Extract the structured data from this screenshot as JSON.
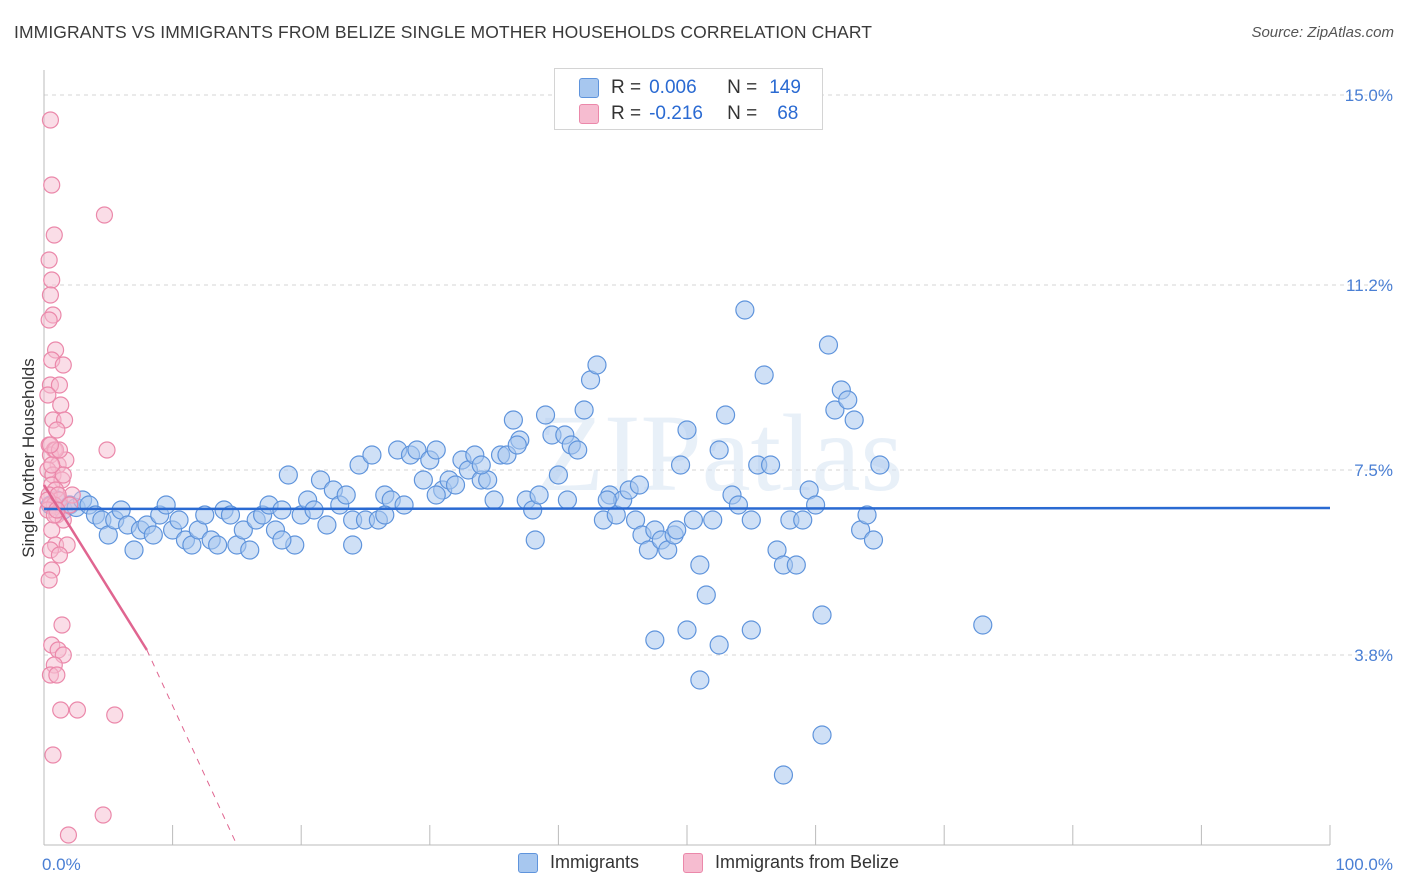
{
  "title": "IMMIGRANTS VS IMMIGRANTS FROM BELIZE SINGLE MOTHER HOUSEHOLDS CORRELATION CHART",
  "source": "Source: ZipAtlas.com",
  "watermark": "ZIPatlas",
  "colors": {
    "blue_fill": "#a7c7ef",
    "blue_stroke": "#5f94dc",
    "blue_line": "#2a6ad2",
    "pink_fill": "#f6bcd0",
    "pink_stroke": "#eb88aa",
    "pink_line": "#e06590",
    "tick_label": "#4a7fd4",
    "grid": "#d6d6d6"
  },
  "legend": [
    {
      "r_label": "R =",
      "r_value": "0.006",
      "n_label": "N =",
      "n_value": "149"
    },
    {
      "r_label": "R =",
      "r_value": "-0.216",
      "n_label": "N =",
      "n_value": "68"
    }
  ],
  "bottom_legend": [
    "Immigrants",
    "Immigrants from Belize"
  ],
  "chart_data": {
    "type": "scatter",
    "title": "IMMIGRANTS VS IMMIGRANTS FROM BELIZE SINGLE MOTHER HOUSEHOLDS CORRELATION CHART",
    "xlabel": "",
    "ylabel": "Single Mother Households",
    "xlim": [
      0,
      100
    ],
    "ylim": [
      0,
      15.5
    ],
    "x_tick_labels": [
      "0.0%",
      "100.0%"
    ],
    "y_ticks": [
      3.8,
      7.5,
      11.2,
      15.0
    ],
    "y_tick_labels": [
      "3.8%",
      "7.5%",
      "11.2%",
      "15.0%"
    ],
    "series": [
      {
        "name": "Immigrants",
        "R": 0.006,
        "N": 149,
        "trend": {
          "x": [
            0,
            100
          ],
          "y": [
            6.72,
            6.74
          ],
          "dashed_after": null
        },
        "points": [
          [
            0.5,
            6.8
          ],
          [
            1.0,
            6.9
          ],
          [
            1.5,
            6.7
          ],
          [
            2.0,
            6.8
          ],
          [
            2.5,
            6.75
          ],
          [
            3.0,
            6.9
          ],
          [
            3.5,
            6.8
          ],
          [
            4.0,
            6.6
          ],
          [
            4.5,
            6.5
          ],
          [
            5.0,
            6.2
          ],
          [
            5.5,
            6.5
          ],
          [
            6.0,
            6.7
          ],
          [
            6.5,
            6.4
          ],
          [
            7.0,
            5.9
          ],
          [
            7.5,
            6.3
          ],
          [
            8.0,
            6.4
          ],
          [
            8.5,
            6.2
          ],
          [
            9.0,
            6.6
          ],
          [
            9.5,
            6.8
          ],
          [
            10.0,
            6.3
          ],
          [
            10.5,
            6.5
          ],
          [
            11.0,
            6.1
          ],
          [
            11.5,
            6.0
          ],
          [
            12.0,
            6.3
          ],
          [
            12.5,
            6.6
          ],
          [
            13.0,
            6.1
          ],
          [
            13.5,
            6.0
          ],
          [
            14.0,
            6.7
          ],
          [
            14.5,
            6.6
          ],
          [
            15.0,
            6.0
          ],
          [
            15.5,
            6.3
          ],
          [
            16.0,
            5.9
          ],
          [
            16.5,
            6.5
          ],
          [
            17.0,
            6.6
          ],
          [
            17.5,
            6.8
          ],
          [
            18.0,
            6.3
          ],
          [
            18.5,
            6.7
          ],
          [
            19.0,
            7.4
          ],
          [
            19.5,
            6.0
          ],
          [
            20.0,
            6.6
          ],
          [
            20.5,
            6.9
          ],
          [
            21.0,
            6.7
          ],
          [
            21.5,
            7.3
          ],
          [
            22.0,
            6.4
          ],
          [
            22.5,
            7.1
          ],
          [
            23.0,
            6.8
          ],
          [
            23.5,
            7.0
          ],
          [
            24.0,
            6.5
          ],
          [
            24.5,
            7.6
          ],
          [
            25.0,
            6.5
          ],
          [
            25.5,
            7.8
          ],
          [
            26.0,
            6.5
          ],
          [
            26.5,
            7.0
          ],
          [
            27.0,
            6.9
          ],
          [
            27.5,
            7.9
          ],
          [
            28.0,
            6.8
          ],
          [
            28.5,
            7.8
          ],
          [
            29.0,
            7.9
          ],
          [
            29.5,
            7.3
          ],
          [
            30.0,
            7.7
          ],
          [
            30.5,
            7.9
          ],
          [
            31.0,
            7.1
          ],
          [
            31.5,
            7.3
          ],
          [
            32.0,
            7.2
          ],
          [
            32.5,
            7.7
          ],
          [
            33.0,
            7.5
          ],
          [
            33.5,
            7.8
          ],
          [
            34.0,
            7.3
          ],
          [
            34.5,
            7.3
          ],
          [
            35.0,
            6.9
          ],
          [
            35.5,
            7.8
          ],
          [
            36.0,
            7.8
          ],
          [
            36.5,
            8.5
          ],
          [
            37.0,
            8.1
          ],
          [
            37.5,
            6.9
          ],
          [
            38.0,
            6.7
          ],
          [
            38.5,
            7.0
          ],
          [
            39.0,
            8.6
          ],
          [
            39.5,
            8.2
          ],
          [
            40.0,
            7.4
          ],
          [
            40.5,
            8.2
          ],
          [
            41.0,
            8.0
          ],
          [
            41.5,
            7.9
          ],
          [
            42.0,
            8.7
          ],
          [
            42.5,
            9.3
          ],
          [
            43.0,
            9.6
          ],
          [
            43.5,
            6.5
          ],
          [
            44.0,
            7.0
          ],
          [
            44.5,
            6.6
          ],
          [
            45.0,
            6.9
          ],
          [
            45.5,
            7.1
          ],
          [
            46.0,
            6.5
          ],
          [
            46.5,
            6.2
          ],
          [
            47.0,
            5.9
          ],
          [
            47.5,
            6.3
          ],
          [
            48.0,
            6.1
          ],
          [
            48.5,
            5.9
          ],
          [
            49.0,
            6.2
          ],
          [
            49.5,
            7.6
          ],
          [
            50.0,
            8.3
          ],
          [
            50.5,
            6.5
          ],
          [
            51.0,
            5.6
          ],
          [
            51.5,
            5.0
          ],
          [
            52.0,
            6.5
          ],
          [
            52.5,
            7.9
          ],
          [
            53.0,
            8.6
          ],
          [
            53.5,
            7.0
          ],
          [
            54.0,
            6.8
          ],
          [
            54.5,
            10.7
          ],
          [
            55.0,
            6.5
          ],
          [
            55.5,
            7.6
          ],
          [
            56.0,
            9.4
          ],
          [
            56.5,
            7.6
          ],
          [
            57.0,
            5.9
          ],
          [
            57.5,
            5.6
          ],
          [
            58.0,
            6.5
          ],
          [
            58.5,
            5.6
          ],
          [
            59.0,
            6.5
          ],
          [
            59.5,
            7.1
          ],
          [
            60.0,
            6.8
          ],
          [
            60.5,
            4.6
          ],
          [
            61.0,
            10.0
          ],
          [
            61.5,
            8.7
          ],
          [
            62.0,
            9.1
          ],
          [
            62.5,
            8.9
          ],
          [
            63.0,
            8.5
          ],
          [
            63.5,
            6.3
          ],
          [
            64.0,
            6.6
          ],
          [
            64.5,
            6.1
          ],
          [
            65.0,
            7.6
          ],
          [
            50.0,
            4.3
          ],
          [
            47.5,
            4.1
          ],
          [
            52.5,
            4.0
          ],
          [
            55.0,
            4.3
          ],
          [
            51.0,
            3.3
          ],
          [
            60.5,
            2.2
          ],
          [
            57.5,
            1.4
          ],
          [
            73.0,
            4.4
          ],
          [
            24.0,
            6.0
          ],
          [
            18.5,
            6.1
          ],
          [
            26.5,
            6.6
          ],
          [
            30.5,
            7.0
          ],
          [
            34.0,
            7.6
          ],
          [
            36.8,
            8.0
          ],
          [
            38.2,
            6.1
          ],
          [
            40.7,
            6.9
          ],
          [
            43.8,
            6.9
          ],
          [
            46.3,
            7.2
          ],
          [
            49.2,
            6.3
          ]
        ]
      },
      {
        "name": "Immigrants from Belize",
        "R": -0.216,
        "N": 68,
        "trend": {
          "x": [
            0,
            8
          ],
          "y": [
            7.2,
            3.9
          ],
          "dashed_to": [
            15,
            0
          ]
        },
        "points": [
          [
            0.5,
            14.5
          ],
          [
            0.6,
            13.2
          ],
          [
            0.8,
            12.2
          ],
          [
            4.7,
            12.6
          ],
          [
            0.4,
            11.7
          ],
          [
            0.6,
            11.3
          ],
          [
            0.5,
            11.0
          ],
          [
            0.7,
            10.6
          ],
          [
            0.4,
            10.5
          ],
          [
            0.9,
            9.9
          ],
          [
            0.6,
            9.7
          ],
          [
            1.5,
            9.6
          ],
          [
            0.5,
            9.2
          ],
          [
            1.2,
            9.2
          ],
          [
            0.3,
            9.0
          ],
          [
            1.3,
            8.8
          ],
          [
            0.7,
            8.5
          ],
          [
            1.6,
            8.5
          ],
          [
            1.0,
            8.3
          ],
          [
            4.9,
            7.9
          ],
          [
            0.4,
            8.0
          ],
          [
            0.8,
            7.9
          ],
          [
            0.5,
            7.8
          ],
          [
            1.1,
            7.6
          ],
          [
            0.3,
            7.5
          ],
          [
            0.7,
            7.4
          ],
          [
            1.4,
            7.3
          ],
          [
            0.6,
            7.2
          ],
          [
            0.9,
            7.1
          ],
          [
            0.4,
            7.0
          ],
          [
            1.2,
            6.9
          ],
          [
            0.5,
            6.8
          ],
          [
            0.8,
            6.8
          ],
          [
            0.3,
            6.7
          ],
          [
            1.0,
            6.6
          ],
          [
            1.5,
            6.5
          ],
          [
            0.6,
            6.3
          ],
          [
            0.9,
            6.0
          ],
          [
            1.8,
            6.0
          ],
          [
            0.5,
            5.9
          ],
          [
            1.2,
            5.8
          ],
          [
            0.6,
            5.5
          ],
          [
            0.4,
            5.3
          ],
          [
            1.4,
            4.4
          ],
          [
            0.6,
            4.0
          ],
          [
            1.1,
            3.9
          ],
          [
            1.5,
            3.8
          ],
          [
            0.8,
            3.6
          ],
          [
            0.5,
            3.4
          ],
          [
            1.0,
            3.4
          ],
          [
            1.3,
            2.7
          ],
          [
            2.6,
            2.7
          ],
          [
            5.5,
            2.6
          ],
          [
            0.7,
            1.8
          ],
          [
            4.6,
            0.6
          ],
          [
            1.9,
            0.2
          ],
          [
            2.2,
            7.0
          ],
          [
            1.7,
            7.7
          ],
          [
            0.9,
            7.9
          ],
          [
            1.2,
            7.9
          ],
          [
            0.5,
            8.0
          ],
          [
            1.5,
            7.4
          ],
          [
            0.8,
            6.6
          ],
          [
            0.3,
            6.9
          ],
          [
            1.1,
            7.0
          ],
          [
            0.6,
            7.6
          ],
          [
            2.0,
            6.8
          ],
          [
            1.0,
            6.7
          ]
        ]
      }
    ]
  }
}
